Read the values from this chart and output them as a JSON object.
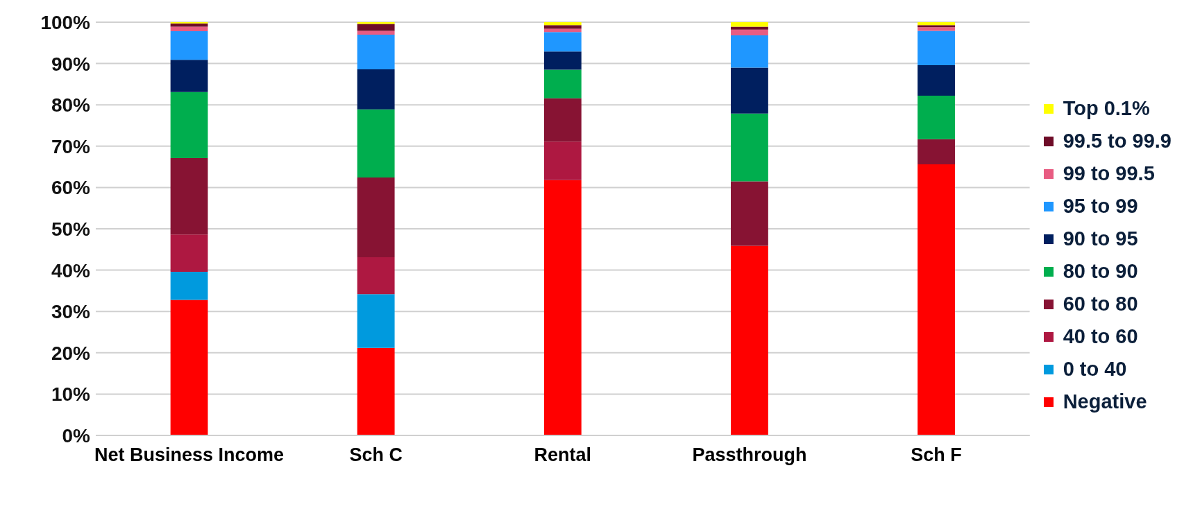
{
  "chart_data": {
    "type": "bar",
    "stacked": true,
    "categories": [
      "Net Business Income",
      "Sch C",
      "Rental",
      "Passthrough",
      "Sch F"
    ],
    "series": [
      {
        "name": "Negative",
        "color": "#ff0000",
        "values": [
          32.8,
          21.2,
          61.8,
          45.9,
          65.6
        ]
      },
      {
        "name": "0 to 40",
        "color": "#009ade",
        "values": [
          6.8,
          13.0,
          0,
          0,
          0
        ]
      },
      {
        "name": "40 to 60",
        "color": "#ae1841",
        "values": [
          9.0,
          8.9,
          9.3,
          0,
          0
        ]
      },
      {
        "name": "60 to 80",
        "color": "#871333",
        "values": [
          18.5,
          19.3,
          10.5,
          15.6,
          6.1
        ]
      },
      {
        "name": "80 to 90",
        "color": "#00ae4e",
        "values": [
          16.0,
          16.5,
          6.9,
          16.4,
          10.5
        ]
      },
      {
        "name": "90 to 95",
        "color": "#001f5f",
        "values": [
          7.8,
          9.7,
          4.4,
          11.1,
          7.4
        ]
      },
      {
        "name": "95 to 99",
        "color": "#1f97ff",
        "values": [
          6.9,
          8.4,
          4.7,
          7.8,
          8.3
        ]
      },
      {
        "name": "99 to 99.5",
        "color": "#e85c82",
        "values": [
          1.1,
          0.9,
          0.8,
          1.4,
          0.9
        ]
      },
      {
        "name": "99.5 to 99.9",
        "color": "#6e0c28",
        "values": [
          0.8,
          1.7,
          0.9,
          0.7,
          0.5
        ]
      },
      {
        "name": "Top 0.1%",
        "color": "#ffff00",
        "values": [
          0.3,
          0.4,
          0.7,
          1.1,
          0.7
        ]
      }
    ],
    "ylim": [
      0,
      100
    ],
    "yticks": [
      {
        "value": 0,
        "label": "0%"
      },
      {
        "value": 10,
        "label": "10%"
      },
      {
        "value": 20,
        "label": "20%"
      },
      {
        "value": 30,
        "label": "30%"
      },
      {
        "value": 40,
        "label": "40%"
      },
      {
        "value": 50,
        "label": "50%"
      },
      {
        "value": 60,
        "label": "60%"
      },
      {
        "value": 70,
        "label": "70%"
      },
      {
        "value": 80,
        "label": "80%"
      },
      {
        "value": 90,
        "label": "90%"
      },
      {
        "value": 100,
        "label": "100%"
      }
    ],
    "grid": "y",
    "legend": "right"
  }
}
